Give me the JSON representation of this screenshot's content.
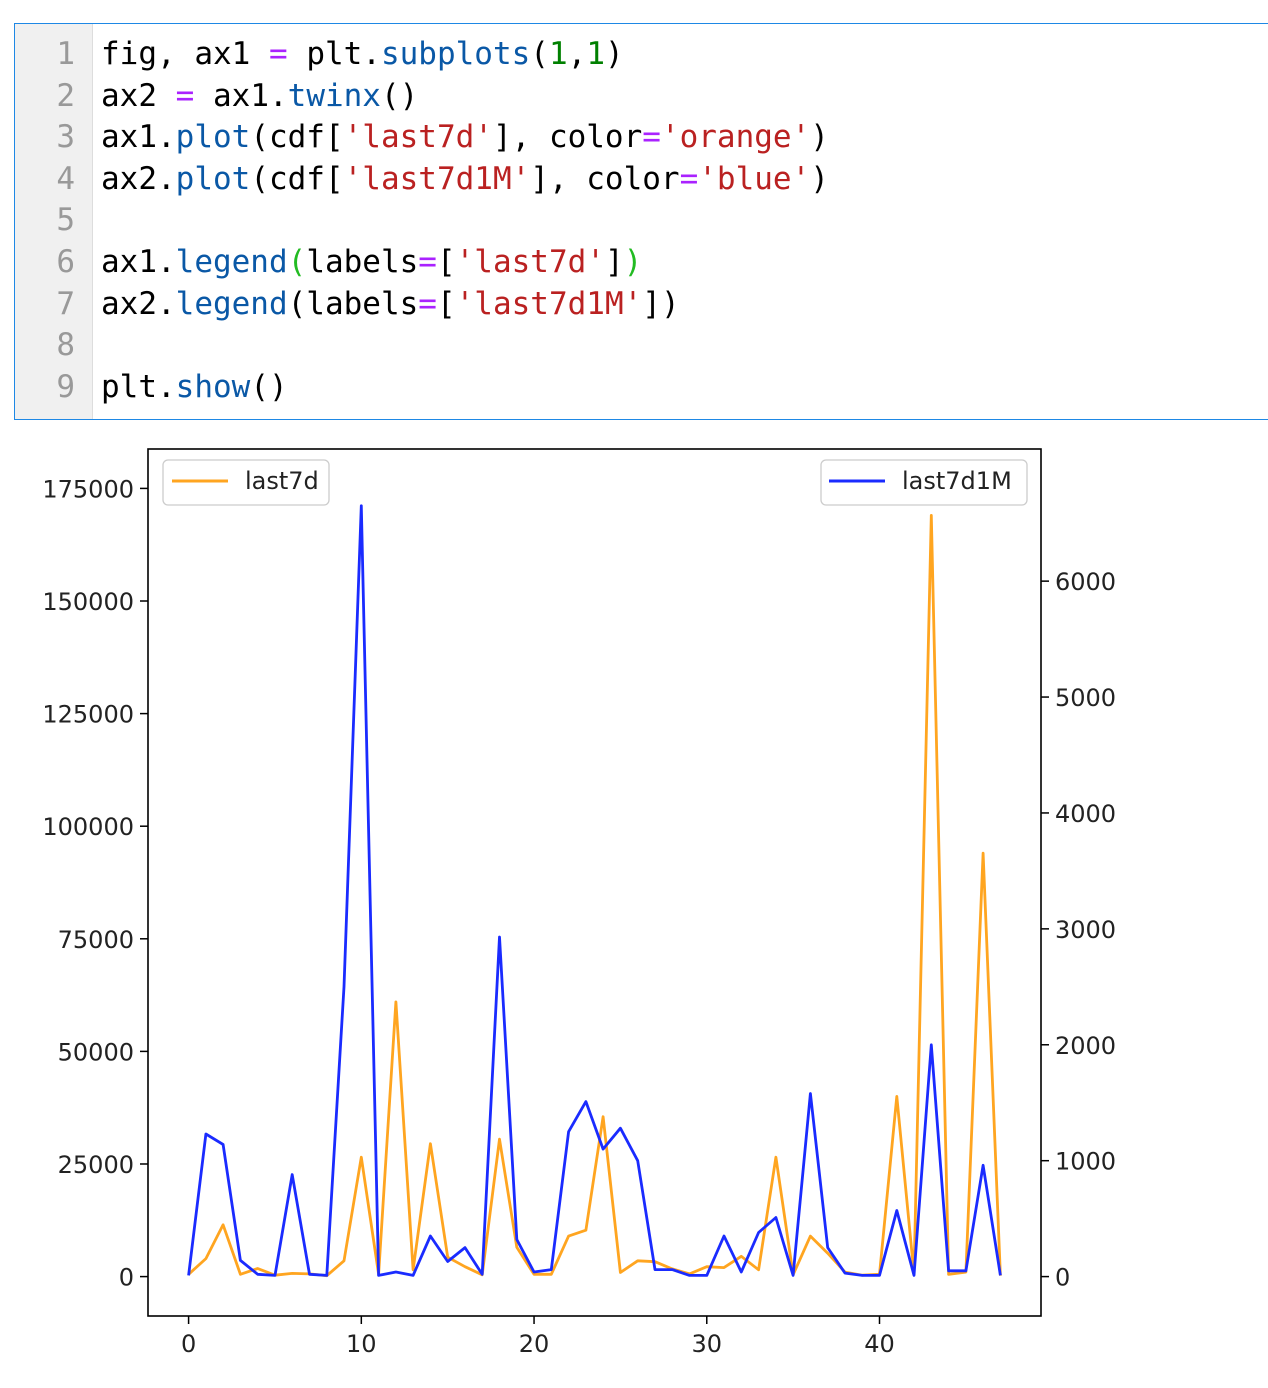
{
  "code_cell": {
    "lines": [
      {
        "num": "1",
        "tokens": [
          {
            "t": "fig, ax1 ",
            "c": "plain"
          },
          {
            "t": "=",
            "c": "op"
          },
          {
            "t": " plt.",
            "c": "plain"
          },
          {
            "t": "subplots",
            "c": "fn"
          },
          {
            "t": "(",
            "c": "plain"
          },
          {
            "t": "1",
            "c": "num"
          },
          {
            "t": ",",
            "c": "plain"
          },
          {
            "t": "1",
            "c": "num"
          },
          {
            "t": ")",
            "c": "plain"
          }
        ]
      },
      {
        "num": "2",
        "tokens": [
          {
            "t": "ax2 ",
            "c": "plain"
          },
          {
            "t": "=",
            "c": "op"
          },
          {
            "t": " ax1.",
            "c": "plain"
          },
          {
            "t": "twinx",
            "c": "fn"
          },
          {
            "t": "()",
            "c": "plain"
          }
        ]
      },
      {
        "num": "3",
        "tokens": [
          {
            "t": "ax1.",
            "c": "plain"
          },
          {
            "t": "plot",
            "c": "fn"
          },
          {
            "t": "(cdf[",
            "c": "plain"
          },
          {
            "t": "'last7d'",
            "c": "str"
          },
          {
            "t": "], color",
            "c": "plain"
          },
          {
            "t": "=",
            "c": "op"
          },
          {
            "t": "'orange'",
            "c": "str"
          },
          {
            "t": ")",
            "c": "plain"
          }
        ]
      },
      {
        "num": "4",
        "tokens": [
          {
            "t": "ax2.",
            "c": "plain"
          },
          {
            "t": "plot",
            "c": "fn"
          },
          {
            "t": "(cdf[",
            "c": "plain"
          },
          {
            "t": "'last7d1M'",
            "c": "str"
          },
          {
            "t": "], color",
            "c": "plain"
          },
          {
            "t": "=",
            "c": "op"
          },
          {
            "t": "'blue'",
            "c": "str"
          },
          {
            "t": ")",
            "c": "plain"
          }
        ]
      },
      {
        "num": "5",
        "tokens": []
      },
      {
        "num": "6",
        "tokens": [
          {
            "t": "ax1.",
            "c": "plain"
          },
          {
            "t": "legend",
            "c": "fn"
          },
          {
            "t": "(",
            "c": "parg"
          },
          {
            "t": "labels",
            "c": "plain"
          },
          {
            "t": "=",
            "c": "op"
          },
          {
            "t": "[",
            "c": "plain"
          },
          {
            "t": "'last7d'",
            "c": "str"
          },
          {
            "t": "]",
            "c": "plain"
          },
          {
            "t": ")",
            "c": "parg"
          }
        ]
      },
      {
        "num": "7",
        "tokens": [
          {
            "t": "ax2.",
            "c": "plain"
          },
          {
            "t": "legend",
            "c": "fn"
          },
          {
            "t": "(labels",
            "c": "plain"
          },
          {
            "t": "=",
            "c": "op"
          },
          {
            "t": "[",
            "c": "plain"
          },
          {
            "t": "'last7d1M'",
            "c": "str"
          },
          {
            "t": "])",
            "c": "plain"
          }
        ]
      },
      {
        "num": "8",
        "tokens": []
      },
      {
        "num": "9",
        "tokens": [
          {
            "t": "plt.",
            "c": "plain"
          },
          {
            "t": "show",
            "c": "fn"
          },
          {
            "t": "()",
            "c": "plain"
          }
        ]
      }
    ]
  },
  "colors": {
    "orange": "#ffa520",
    "blue": "#1a2bff",
    "cell_border": "#1e88e5"
  },
  "chart_data": {
    "type": "line",
    "title": "",
    "xlabel": "",
    "ylabel": "",
    "xlim": [
      -2.35,
      49.35
    ],
    "ylim_left": [
      -8750,
      183750
    ],
    "ylim_right": [
      -340,
      7140
    ],
    "x_ticks": [
      0,
      10,
      20,
      30,
      40
    ],
    "y_left_ticks": [
      0,
      25000,
      50000,
      75000,
      100000,
      125000,
      150000,
      175000
    ],
    "y_right_ticks": [
      0,
      1000,
      2000,
      3000,
      4000,
      5000,
      6000
    ],
    "grid": false,
    "series": [
      {
        "name": "last7d",
        "axis": "left",
        "color": "#ffa520",
        "legend_loc": "upper left",
        "x": [
          0,
          1,
          2,
          3,
          4,
          5,
          6,
          7,
          8,
          9,
          10,
          11,
          12,
          13,
          14,
          15,
          16,
          17,
          18,
          19,
          20,
          21,
          22,
          23,
          24,
          25,
          26,
          27,
          28,
          29,
          30,
          31,
          32,
          33,
          34,
          35,
          36,
          37,
          38,
          39,
          40,
          41,
          42,
          43,
          44,
          45,
          46,
          47
        ],
        "values": [
          500,
          4000,
          11500,
          500,
          1800,
          300,
          700,
          600,
          200,
          3500,
          26500,
          500,
          61000,
          1500,
          29500,
          4300,
          2200,
          400,
          30500,
          6500,
          500,
          500,
          9000,
          10300,
          35500,
          900,
          3500,
          3300,
          1700,
          600,
          2200,
          2000,
          4500,
          1500,
          26500,
          400,
          9000,
          5200,
          1000,
          300,
          500,
          40000,
          500,
          169000,
          500,
          1000,
          94000,
          200
        ]
      },
      {
        "name": "last7d1M",
        "axis": "right",
        "color": "#1a2bff",
        "legend_loc": "upper right",
        "x": [
          0,
          1,
          2,
          3,
          4,
          5,
          6,
          7,
          8,
          9,
          10,
          11,
          12,
          13,
          14,
          15,
          16,
          17,
          18,
          19,
          20,
          21,
          22,
          23,
          24,
          25,
          26,
          27,
          28,
          29,
          30,
          31,
          32,
          33,
          34,
          35,
          36,
          37,
          38,
          39,
          40,
          41,
          42,
          43,
          44,
          45,
          46,
          47
        ],
        "values": [
          10,
          1230,
          1140,
          140,
          20,
          10,
          880,
          20,
          10,
          2500,
          6650,
          10,
          40,
          10,
          350,
          130,
          250,
          20,
          2930,
          320,
          40,
          60,
          1250,
          1510,
          1100,
          1280,
          1000,
          60,
          60,
          10,
          10,
          350,
          40,
          380,
          510,
          10,
          1580,
          250,
          30,
          10,
          10,
          570,
          10,
          2000,
          50,
          50,
          960,
          10
        ]
      }
    ]
  }
}
